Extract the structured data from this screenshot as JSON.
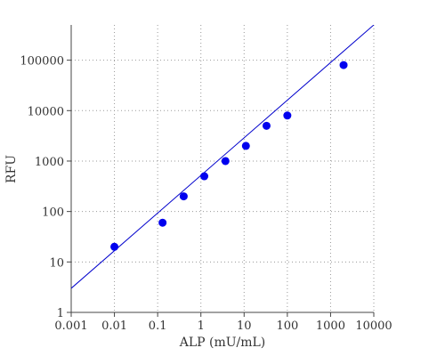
{
  "chart_data": {
    "type": "scatter",
    "title": "",
    "xlabel": "ALP (mU/mL)",
    "ylabel": "RFU",
    "x_scale": "log",
    "y_scale": "log",
    "xlim": [
      0.001,
      10000
    ],
    "ylim": [
      1,
      500000
    ],
    "x_ticks": [
      0.001,
      0.01,
      0.1,
      1,
      10,
      100,
      1000,
      10000
    ],
    "x_tick_labels": [
      "0.001",
      "0.01",
      "0.1",
      "1",
      "10",
      "100",
      "1000",
      "10000"
    ],
    "y_ticks": [
      1,
      10,
      100,
      1000,
      10000,
      100000
    ],
    "y_tick_labels": [
      "1",
      "10",
      "100",
      "1000",
      "10000",
      "100000"
    ],
    "grid": true,
    "series": [
      {
        "type": "scatter",
        "color": "#0000ee",
        "x": [
          0.01,
          0.13,
          0.4,
          1.2,
          3.7,
          11,
          33,
          100,
          2000
        ],
        "y": [
          20,
          60,
          200,
          500,
          1000,
          2000,
          5000,
          8000,
          80000
        ]
      },
      {
        "type": "line",
        "color": "#0000cc",
        "x": [
          0.001,
          10000
        ],
        "y": [
          3,
          500000
        ]
      }
    ]
  }
}
